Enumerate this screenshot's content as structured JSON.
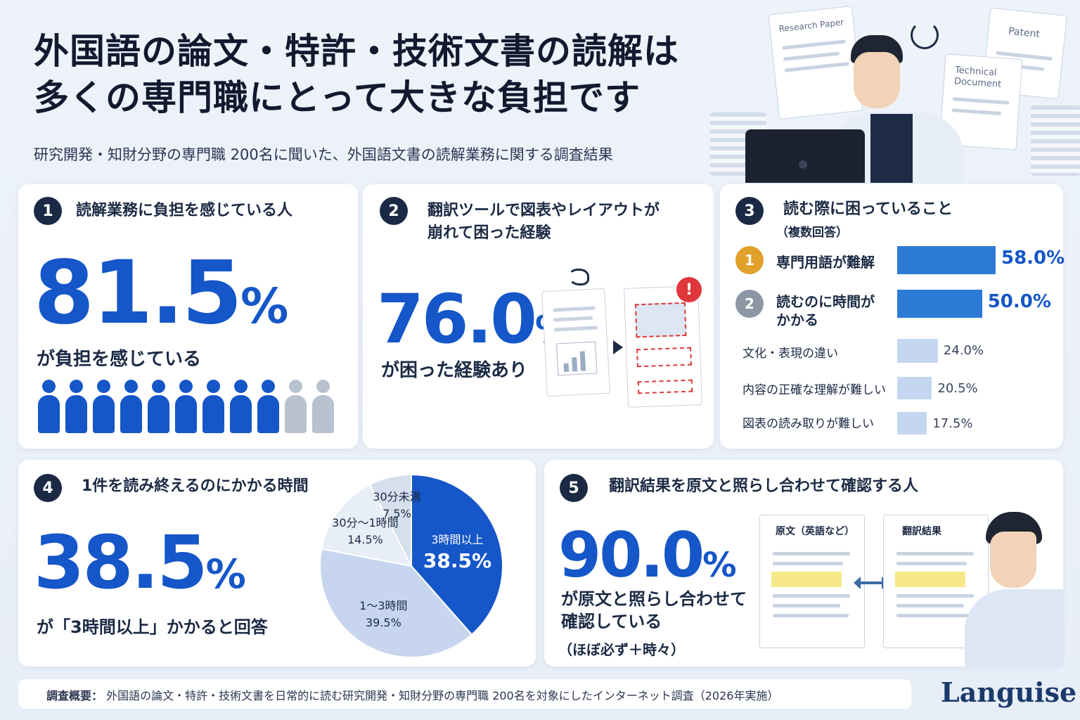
{
  "header": {
    "title_line1": "外国語の論文・特許・技術文書の読解は",
    "title_line2": "多くの専門職にとって大きな負担です",
    "subtitle": "研究開発・知財分野の専門職 200名に聞いた、外国語文書の読解業務に関する調査結果",
    "doc_labels": [
      "Research Paper",
      "Patent",
      "Technical Document"
    ]
  },
  "card1": {
    "number": "1",
    "title": "読解業務に負担を感じている人",
    "value": "81.5",
    "unit": "%",
    "caption": "が負担を感じている",
    "people_on": 9,
    "people_total": 11
  },
  "card2": {
    "number": "2",
    "title_line1": "翻訳ツールで図表やレイアウトが",
    "title_line2": "崩れて困った経験",
    "value": "76.0",
    "unit": "%",
    "caption": "が困った経験あり"
  },
  "card3": {
    "number": "3",
    "title": "読む際に困っていること",
    "subtitle": "（複数回答）",
    "items": [
      {
        "rank": "1",
        "label": "専門用語が難解",
        "value": "58.0%",
        "pct": 58.0
      },
      {
        "rank": "2",
        "label": "読むのに時間が\nかかる",
        "value": "50.0%",
        "pct": 50.0
      },
      {
        "rank": "",
        "label": "文化・表現の違い",
        "value": "24.0%",
        "pct": 24.0
      },
      {
        "rank": "",
        "label": "内容の正確な理解が難しい",
        "value": "20.5%",
        "pct": 20.5
      },
      {
        "rank": "",
        "label": "図表の読み取りが難しい",
        "value": "17.5%",
        "pct": 17.5
      }
    ],
    "colors": {
      "rank1": "#e0a02a",
      "rank2": "#8d96a4",
      "strong_bar": "#2d7bd6",
      "light_bar": "#c5d6f0"
    }
  },
  "card4": {
    "number": "4",
    "title": "1件を読み終えるのにかかる時間",
    "value": "38.5",
    "unit": "%",
    "caption": "が「3時間以上」かかると回答",
    "chart_data": {
      "type": "pie",
      "slices": [
        {
          "label": "3時間以上",
          "value": 38.5,
          "value_label": "38.5%",
          "color": "#1556c8"
        },
        {
          "label": "1〜3時間",
          "value": 39.5,
          "value_label": "39.5%",
          "color": "#c7d6ee"
        },
        {
          "label": "30分〜1時間",
          "value": 14.5,
          "value_label": "14.5%",
          "color": "#e8eef8"
        },
        {
          "label": "30分未満",
          "value": 7.5,
          "value_label": "7.5%",
          "color": "#d6dfec"
        }
      ]
    }
  },
  "card5": {
    "number": "5",
    "title": "翻訳結果を原文と照らし合わせて確認する人",
    "value": "90.0",
    "unit": "%",
    "caption_line1": "が原文と照らし合わせて",
    "caption_line2": "確認している",
    "note": "（ほぼ必ず＋時々）",
    "doc_left": "原文（英語など）",
    "doc_right": "翻訳結果"
  },
  "footer": {
    "label": "調査概要：",
    "text": "外国語の論文・特許・技術文書を日常的に読む研究開発・知財分野の専門職 200名を対象にしたインターネット調査（2026年実施）"
  },
  "brand": "Languise"
}
